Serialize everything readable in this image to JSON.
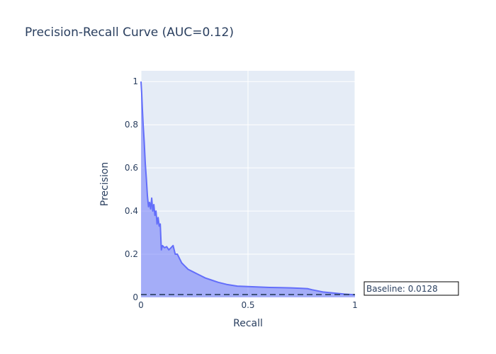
{
  "chart_data": {
    "type": "area",
    "title": "Precision-Recall Curve (AUC=0.12)",
    "xlabel": "Recall",
    "ylabel": "Precision",
    "xlim": [
      0,
      1
    ],
    "ylim": [
      0,
      1.05
    ],
    "x_ticks": [
      0,
      0.5,
      1
    ],
    "x_tick_labels": [
      "0",
      "0.5",
      "1"
    ],
    "y_ticks": [
      0,
      0.2,
      0.4,
      0.6,
      0.8,
      1
    ],
    "y_tick_labels": [
      "0",
      "0.2",
      "0.4",
      "0.6",
      "0.8",
      "1"
    ],
    "grid": true,
    "legend": "none",
    "colors": {
      "line": "#636efa",
      "fill": "rgba(99,110,250,0.5)",
      "plot_bg": "#e5ecf6",
      "grid": "#ffffff",
      "baseline": "#2a3f5f"
    },
    "series": [
      {
        "x": [
          0,
          0.003,
          0.006,
          0.01,
          0.015,
          0.02,
          0.025,
          0.03,
          0.035,
          0.04,
          0.045,
          0.05,
          0.055,
          0.06,
          0.065,
          0.07,
          0.075,
          0.08,
          0.085,
          0.09,
          0.095,
          0.1,
          0.11,
          0.12,
          0.13,
          0.14,
          0.15,
          0.16,
          0.17,
          0.18,
          0.19,
          0.2,
          0.22,
          0.24,
          0.26,
          0.28,
          0.3,
          0.33,
          0.36,
          0.4,
          0.45,
          0.5,
          0.55,
          0.6,
          0.65,
          0.7,
          0.75,
          0.78,
          0.8,
          0.85,
          0.9,
          0.95,
          1.0
        ],
        "y": [
          1.0,
          0.95,
          0.88,
          0.8,
          0.72,
          0.62,
          0.55,
          0.47,
          0.42,
          0.44,
          0.41,
          0.46,
          0.4,
          0.43,
          0.38,
          0.4,
          0.34,
          0.37,
          0.33,
          0.34,
          0.22,
          0.24,
          0.23,
          0.235,
          0.22,
          0.23,
          0.24,
          0.2,
          0.2,
          0.18,
          0.16,
          0.15,
          0.13,
          0.12,
          0.11,
          0.1,
          0.09,
          0.08,
          0.07,
          0.06,
          0.052,
          0.05,
          0.048,
          0.046,
          0.045,
          0.044,
          0.042,
          0.04,
          0.035,
          0.025,
          0.02,
          0.015,
          0.012
        ]
      }
    ],
    "baseline": {
      "y": 0.0128,
      "label": "Baseline: 0.0128"
    }
  }
}
